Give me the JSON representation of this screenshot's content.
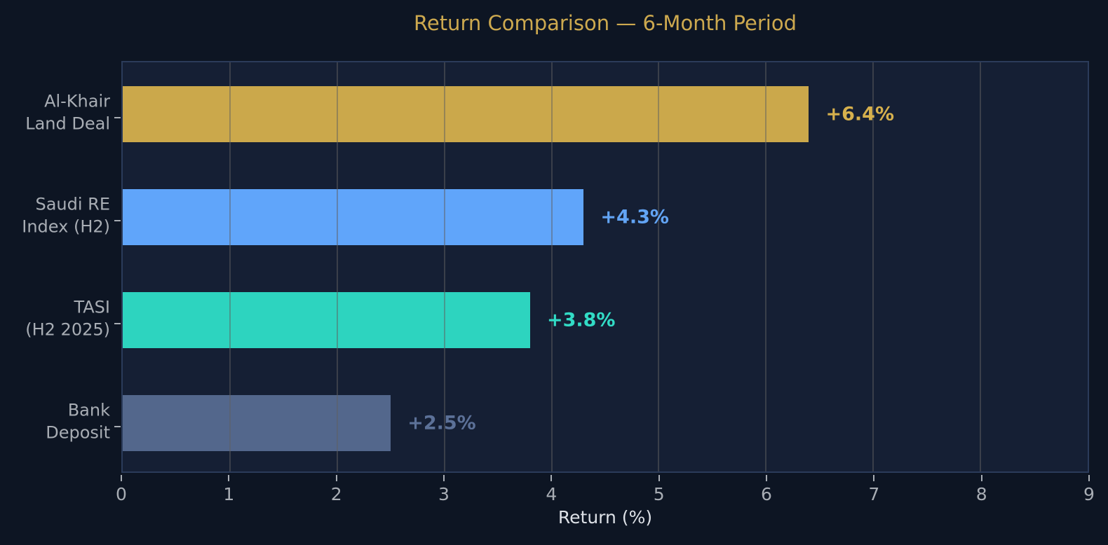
{
  "colors": {
    "background": "#0D1523",
    "plot_background": "#151F34",
    "plot_border": "#2B3B5A",
    "gridline": "rgba(95,95,95,0.5)",
    "tick_label": "#A8ADB4",
    "axis_label": "#DDE1E7",
    "title_color": "#CDA94F"
  },
  "chart_data": {
    "type": "bar",
    "orientation": "horizontal",
    "title": "Return Comparison — 6-Month Period",
    "xlabel": "Return (%)",
    "ylabel": "",
    "categories": [
      "Al-Khair\nLand Deal",
      "Saudi RE\nIndex (H2)",
      "TASI\n(H2 2025)",
      "Bank\nDeposit"
    ],
    "values": [
      6.4,
      4.3,
      3.8,
      2.5
    ],
    "value_labels": [
      "+6.4%",
      "+4.3%",
      "+3.8%",
      "+2.5%"
    ],
    "bar_colors": [
      "#CBA84B",
      "#60A5FA",
      "#2DD4BF",
      "#53678C"
    ],
    "value_label_colors": [
      "#D6B04D",
      "#62A4F5",
      "#32DCC6",
      "#5C7198"
    ],
    "xlim": [
      0,
      9
    ],
    "x_ticks": [
      "0",
      "1",
      "2",
      "3",
      "4",
      "5",
      "6",
      "7",
      "8",
      "9"
    ],
    "grid": true,
    "legend": false
  }
}
